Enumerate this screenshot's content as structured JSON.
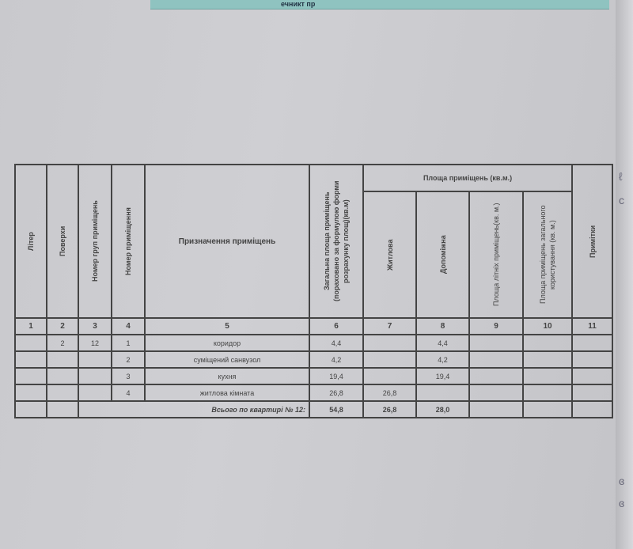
{
  "top_strip_text": "ечникт пр",
  "header": {
    "liter": "Літер",
    "floors": "Поверхи",
    "group_no": "Номер груп приміщень",
    "room_no": "Номер приміщення",
    "purpose": "Призначення приміщень",
    "total_area": "Загальна площа приміщень (пораховано за формулою форми розрахунку площ)(кв.м)",
    "area_group": "Площа приміщень (кв.м.)",
    "living": "Житлова",
    "auxiliary": "Допоміжна",
    "summer": "Площа літніх приміщень(кв. м.)",
    "common": "Площа приміщень загального користування (кв. м.)",
    "notes": "Примітки"
  },
  "column_numbers": [
    "1",
    "2",
    "3",
    "4",
    "5",
    "6",
    "7",
    "8",
    "9",
    "10",
    "11"
  ],
  "rows": [
    {
      "liter": "",
      "floor": "2",
      "group": "12",
      "no": "1",
      "purpose": "коридор",
      "total": "4,4",
      "living": "",
      "aux": "4,4"
    },
    {
      "liter": "",
      "floor": "",
      "group": "",
      "no": "2",
      "purpose": "суміщений санвузол",
      "total": "4,2",
      "living": "",
      "aux": "4,2"
    },
    {
      "liter": "",
      "floor": "",
      "group": "",
      "no": "3",
      "purpose": "кухня",
      "total": "19,4",
      "living": "",
      "aux": "19,4"
    },
    {
      "liter": "",
      "floor": "",
      "group": "",
      "no": "4",
      "purpose": "житлова кімната",
      "total": "26,8",
      "living": "26,8",
      "aux": ""
    }
  ],
  "total": {
    "label": "Всього по квартирі № 12:",
    "total": "54,8",
    "living": "26,8",
    "aux": "28,0"
  }
}
